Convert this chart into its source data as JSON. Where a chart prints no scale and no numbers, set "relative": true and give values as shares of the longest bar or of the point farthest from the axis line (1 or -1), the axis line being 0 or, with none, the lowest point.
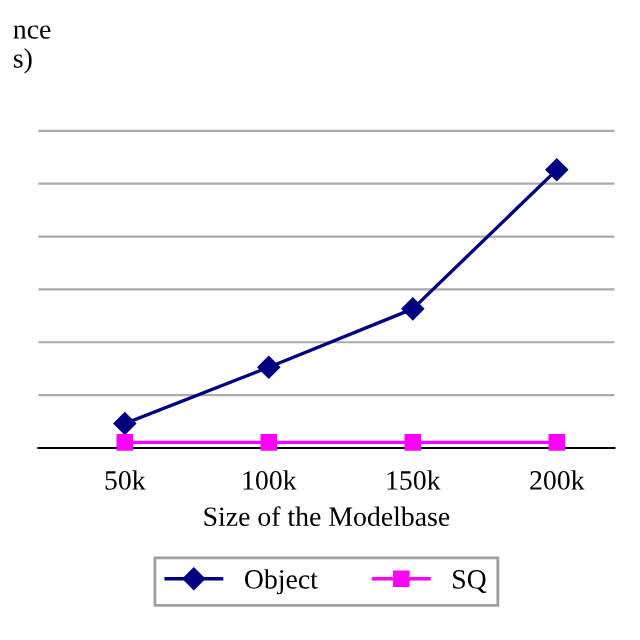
{
  "chart_data": {
    "type": "line",
    "relative": true,
    "xlabel": "Size of the Modelbase",
    "ylabel": "nce\ns)",
    "categories": [
      "50k",
      "100k",
      "150k",
      "200k"
    ],
    "series": [
      {
        "name": "Object",
        "color": "#000080",
        "marker": "diamond",
        "values": [
          0.088,
          0.29,
          0.5,
          1
        ]
      },
      {
        "name": "SQ",
        "color": "#ff00ff",
        "marker": "square",
        "values": [
          0.02,
          0.02,
          0.02,
          0.02
        ]
      }
    ],
    "grid": "y",
    "legend": "bottom",
    "line_style": "solid"
  }
}
